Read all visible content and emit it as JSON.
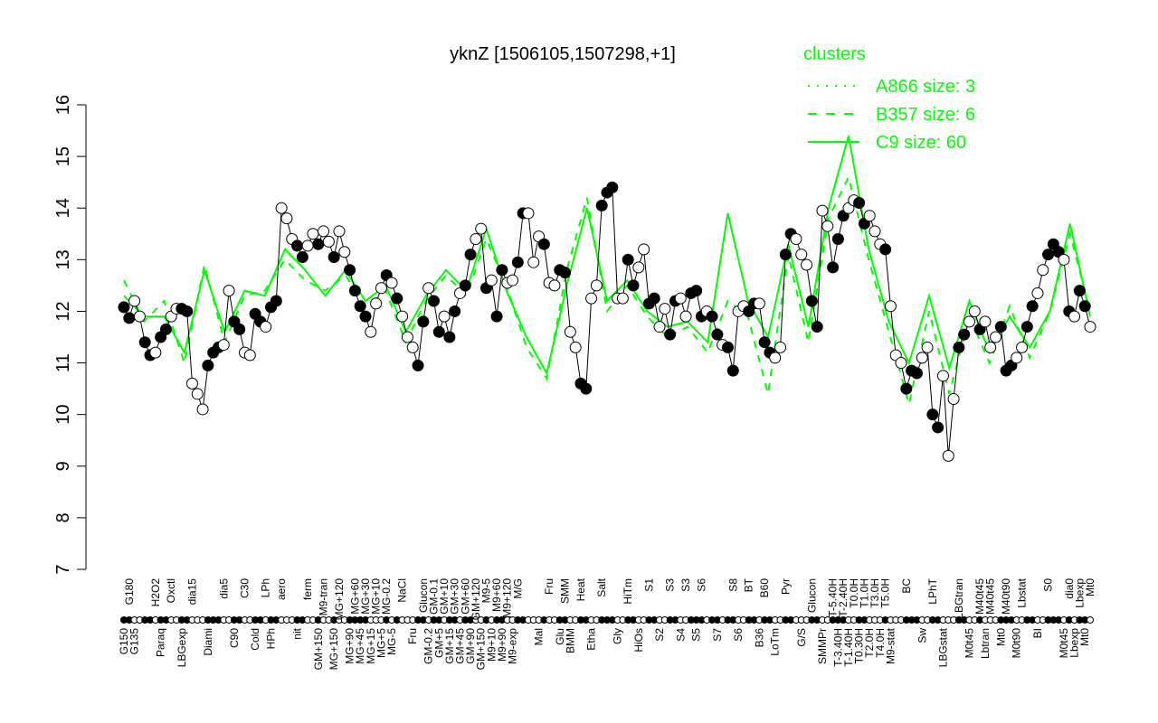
{
  "chart_data": {
    "type": "line",
    "title": "yknZ [1506105,1507298,+1]",
    "xlabel": "",
    "ylabel": "",
    "ylim": [
      7,
      16
    ],
    "yticks": [
      7,
      8,
      9,
      10,
      11,
      12,
      13,
      14,
      15,
      16
    ],
    "grid": false,
    "legend": {
      "title": "clusters",
      "placement": "top-right",
      "entries": [
        {
          "label": "A866 size: 3",
          "style": "dotted"
        },
        {
          "label": "B357 size: 6",
          "style": "dashed"
        },
        {
          "label": "C9 size: 60",
          "style": "solid"
        }
      ]
    },
    "colors": {
      "cluster": "#00ff00",
      "points": "#000000"
    },
    "points": [
      {
        "label": "G150",
        "value": 12.08,
        "filled": true
      },
      {
        "label": "G180",
        "value": 11.87,
        "filled": true
      },
      {
        "label": "G135",
        "value": 12.2,
        "filled": false
      },
      {
        "label": "",
        "value": 11.9,
        "filled": false
      },
      {
        "label": "",
        "value": 11.4,
        "filled": true
      },
      {
        "label": "",
        "value": 11.15,
        "filled": true
      },
      {
        "label": "H2O2",
        "value": 11.2,
        "filled": false
      },
      {
        "label": "Paraq",
        "value": 11.5,
        "filled": true
      },
      {
        "label": "",
        "value": 11.65,
        "filled": true
      },
      {
        "label": "Oxctl",
        "value": 11.9,
        "filled": false
      },
      {
        "label": "",
        "value": 12.05,
        "filled": false
      },
      {
        "label": "LBGexp",
        "value": 12.05,
        "filled": true
      },
      {
        "label": "",
        "value": 12.0,
        "filled": true
      },
      {
        "label": "dia15",
        "value": 10.6,
        "filled": false
      },
      {
        "label": "",
        "value": 10.4,
        "filled": false
      },
      {
        "label": "",
        "value": 10.1,
        "filled": false
      },
      {
        "label": "Diami",
        "value": 10.95,
        "filled": true
      },
      {
        "label": "",
        "value": 11.2,
        "filled": true
      },
      {
        "label": "",
        "value": 11.3,
        "filled": true
      },
      {
        "label": "dia5",
        "value": 11.35,
        "filled": false
      },
      {
        "label": "",
        "value": 12.4,
        "filled": false
      },
      {
        "label": "C90",
        "value": 11.8,
        "filled": true
      },
      {
        "label": "",
        "value": 11.65,
        "filled": true
      },
      {
        "label": "C30",
        "value": 11.2,
        "filled": false
      },
      {
        "label": "",
        "value": 11.15,
        "filled": false
      },
      {
        "label": "Cold",
        "value": 11.95,
        "filled": true
      },
      {
        "label": "",
        "value": 11.8,
        "filled": true
      },
      {
        "label": "LPh",
        "value": 11.7,
        "filled": false
      },
      {
        "label": "HPh",
        "value": 12.08,
        "filled": true
      },
      {
        "label": "",
        "value": 12.2,
        "filled": true
      },
      {
        "label": "aero",
        "value": 14.0,
        "filled": false
      },
      {
        "label": "",
        "value": 13.8,
        "filled": false
      },
      {
        "label": "",
        "value": 13.4,
        "filled": false
      },
      {
        "label": "nit",
        "value": 13.27,
        "filled": true
      },
      {
        "label": "",
        "value": 13.05,
        "filled": true
      },
      {
        "label": "ferm",
        "value": 13.27,
        "filled": false
      },
      {
        "label": "",
        "value": 13.5,
        "filled": false
      },
      {
        "label": "GM+150",
        "value": 13.3,
        "filled": true
      },
      {
        "label": "M9-tran",
        "value": 13.55,
        "filled": false
      },
      {
        "label": "",
        "value": 13.35,
        "filled": false
      },
      {
        "label": "MG+150",
        "value": 13.05,
        "filled": true
      },
      {
        "label": "MG+120",
        "value": 13.55,
        "filled": false
      },
      {
        "label": "",
        "value": 13.15,
        "filled": false
      },
      {
        "label": "MG+90",
        "value": 12.8,
        "filled": true
      },
      {
        "label": "MG+60",
        "value": 12.4,
        "filled": true
      },
      {
        "label": "MG+45",
        "value": 12.1,
        "filled": true
      },
      {
        "label": "MG+30",
        "value": 11.9,
        "filled": true
      },
      {
        "label": "MG+15",
        "value": 11.6,
        "filled": false
      },
      {
        "label": "MG+10",
        "value": 12.15,
        "filled": false
      },
      {
        "label": "MG+5",
        "value": 12.45,
        "filled": false
      },
      {
        "label": "MG-0.2",
        "value": 12.7,
        "filled": true
      },
      {
        "label": "MG-5",
        "value": 12.55,
        "filled": false
      },
      {
        "label": "",
        "value": 12.25,
        "filled": true
      },
      {
        "label": "NaCl",
        "value": 11.9,
        "filled": false
      },
      {
        "label": "",
        "value": 11.5,
        "filled": false
      },
      {
        "label": "Fru",
        "value": 11.3,
        "filled": false
      },
      {
        "label": "",
        "value": 10.95,
        "filled": true
      },
      {
        "label": "Glucon",
        "value": 11.8,
        "filled": true
      },
      {
        "label": "GM-0.2",
        "value": 12.45,
        "filled": false
      },
      {
        "label": "GM-0.1",
        "value": 12.2,
        "filled": true
      },
      {
        "label": "GM+5",
        "value": 11.6,
        "filled": true
      },
      {
        "label": "GM+10",
        "value": 11.9,
        "filled": false
      },
      {
        "label": "GM+15",
        "value": 11.5,
        "filled": true
      },
      {
        "label": "GM+30",
        "value": 12.0,
        "filled": true
      },
      {
        "label": "GM+45",
        "value": 12.35,
        "filled": false
      },
      {
        "label": "GM+60",
        "value": 12.5,
        "filled": true
      },
      {
        "label": "GM+90",
        "value": 13.1,
        "filled": true
      },
      {
        "label": "GM+120",
        "value": 13.4,
        "filled": false
      },
      {
        "label": "GM+150",
        "value": 13.6,
        "filled": false
      },
      {
        "label": "M9-5",
        "value": 12.45,
        "filled": true
      },
      {
        "label": "M9+10",
        "value": 12.6,
        "filled": false
      },
      {
        "label": "M9+60",
        "value": 11.9,
        "filled": true
      },
      {
        "label": "M9+90",
        "value": 12.8,
        "filled": true
      },
      {
        "label": "M9+120",
        "value": 12.55,
        "filled": false
      },
      {
        "label": "M9-exp",
        "value": 12.6,
        "filled": false
      },
      {
        "label": "M/G",
        "value": 12.95,
        "filled": true
      },
      {
        "label": "",
        "value": 13.9,
        "filled": true
      },
      {
        "label": "",
        "value": 13.9,
        "filled": false
      },
      {
        "label": "",
        "value": 12.95,
        "filled": false
      },
      {
        "label": "Mal",
        "value": 13.45,
        "filled": false
      },
      {
        "label": "",
        "value": 13.3,
        "filled": true
      },
      {
        "label": "Fru",
        "value": 12.55,
        "filled": false
      },
      {
        "label": "",
        "value": 12.5,
        "filled": false
      },
      {
        "label": "Glu",
        "value": 12.8,
        "filled": true
      },
      {
        "label": "SMM",
        "value": 12.75,
        "filled": true
      },
      {
        "label": "BMM",
        "value": 11.6,
        "filled": false
      },
      {
        "label": "",
        "value": 11.3,
        "filled": false
      },
      {
        "label": "Heat",
        "value": 10.6,
        "filled": true
      },
      {
        "label": "",
        "value": 10.5,
        "filled": true
      },
      {
        "label": "Etha",
        "value": 12.25,
        "filled": false
      },
      {
        "label": "",
        "value": 12.5,
        "filled": false
      },
      {
        "label": "Salt",
        "value": 14.05,
        "filled": true
      },
      {
        "label": "",
        "value": 14.3,
        "filled": true
      },
      {
        "label": "",
        "value": 14.4,
        "filled": true
      },
      {
        "label": "Gly",
        "value": 12.25,
        "filled": false
      },
      {
        "label": "",
        "value": 12.25,
        "filled": false
      },
      {
        "label": "HiTm",
        "value": 13.0,
        "filled": true
      },
      {
        "label": "",
        "value": 12.5,
        "filled": true
      },
      {
        "label": "HiOs",
        "value": 12.85,
        "filled": false
      },
      {
        "label": "",
        "value": 13.2,
        "filled": false
      },
      {
        "label": "S1",
        "value": 12.15,
        "filled": true
      },
      {
        "label": "",
        "value": 12.25,
        "filled": true
      },
      {
        "label": "S2",
        "value": 11.7,
        "filled": false
      },
      {
        "label": "",
        "value": 12.05,
        "filled": false
      },
      {
        "label": "S3",
        "value": 11.55,
        "filled": true
      },
      {
        "label": "",
        "value": 12.2,
        "filled": true
      },
      {
        "label": "S4",
        "value": 12.25,
        "filled": false
      },
      {
        "label": "S3",
        "value": 11.9,
        "filled": false
      },
      {
        "label": "",
        "value": 12.35,
        "filled": true
      },
      {
        "label": "S5",
        "value": 12.4,
        "filled": true
      },
      {
        "label": "S6",
        "value": 11.9,
        "filled": true
      },
      {
        "label": "",
        "value": 12.0,
        "filled": false
      },
      {
        "label": "",
        "value": 11.9,
        "filled": true
      },
      {
        "label": "S7",
        "value": 11.55,
        "filled": true
      },
      {
        "label": "",
        "value": 11.35,
        "filled": false
      },
      {
        "label": "",
        "value": 11.3,
        "filled": true
      },
      {
        "label": "S8",
        "value": 10.85,
        "filled": true
      },
      {
        "label": "S6",
        "value": 12.0,
        "filled": false
      },
      {
        "label": "",
        "value": 12.1,
        "filled": false
      },
      {
        "label": "BT",
        "value": 12.0,
        "filled": true
      },
      {
        "label": "",
        "value": 12.15,
        "filled": true
      },
      {
        "label": "B36",
        "value": 12.15,
        "filled": false
      },
      {
        "label": "B60",
        "value": 11.4,
        "filled": true
      },
      {
        "label": "",
        "value": 11.2,
        "filled": true
      },
      {
        "label": "LoTm",
        "value": 11.1,
        "filled": false
      },
      {
        "label": "",
        "value": 11.3,
        "filled": false
      },
      {
        "label": "Pyr",
        "value": 13.1,
        "filled": true
      },
      {
        "label": "",
        "value": 13.5,
        "filled": true
      },
      {
        "label": "",
        "value": 13.4,
        "filled": false
      },
      {
        "label": "G/S",
        "value": 13.1,
        "filled": false
      },
      {
        "label": "",
        "value": 12.9,
        "filled": false
      },
      {
        "label": "Glucon",
        "value": 12.2,
        "filled": true
      },
      {
        "label": "",
        "value": 11.7,
        "filled": true
      },
      {
        "label": "SMMPr",
        "value": 13.95,
        "filled": false
      },
      {
        "label": "",
        "value": 13.65,
        "filled": false
      },
      {
        "label": "T-5.40H",
        "value": 12.85,
        "filled": true
      },
      {
        "label": "T-3.40H",
        "value": 13.4,
        "filled": true
      },
      {
        "label": "T-2.40H",
        "value": 13.85,
        "filled": true
      },
      {
        "label": "T-1.40H",
        "value": 14.0,
        "filled": false
      },
      {
        "label": "T0.0H",
        "value": 14.15,
        "filled": false
      },
      {
        "label": "T0.30H",
        "value": 14.1,
        "filled": true
      },
      {
        "label": "T1.0H",
        "value": 13.7,
        "filled": true
      },
      {
        "label": "T2.0H",
        "value": 13.85,
        "filled": false
      },
      {
        "label": "T3.0H",
        "value": 13.55,
        "filled": false
      },
      {
        "label": "T4.0H",
        "value": 13.3,
        "filled": false
      },
      {
        "label": "T5.0H",
        "value": 13.2,
        "filled": true
      },
      {
        "label": "M9-stat",
        "value": 12.1,
        "filled": false
      },
      {
        "label": "",
        "value": 11.15,
        "filled": false
      },
      {
        "label": "",
        "value": 11.0,
        "filled": false
      },
      {
        "label": "BC",
        "value": 10.5,
        "filled": true
      },
      {
        "label": "",
        "value": 10.85,
        "filled": true
      },
      {
        "label": "",
        "value": 10.8,
        "filled": true
      },
      {
        "label": "Sw",
        "value": 11.1,
        "filled": false
      },
      {
        "label": "",
        "value": 11.3,
        "filled": false
      },
      {
        "label": "LPhT",
        "value": 10.0,
        "filled": true
      },
      {
        "label": "",
        "value": 9.75,
        "filled": true
      },
      {
        "label": "LBGstat",
        "value": 10.75,
        "filled": false
      },
      {
        "label": "",
        "value": 9.2,
        "filled": false
      },
      {
        "label": "",
        "value": 10.3,
        "filled": false
      },
      {
        "label": "LBGtran",
        "value": 11.3,
        "filled": true
      },
      {
        "label": "",
        "value": 11.55,
        "filled": true
      },
      {
        "label": "M0t45",
        "value": 11.8,
        "filled": false
      },
      {
        "label": "",
        "value": 12.0,
        "filled": false
      },
      {
        "label": "M40t45",
        "value": 11.65,
        "filled": true
      },
      {
        "label": "Lbtran",
        "value": 11.8,
        "filled": false
      },
      {
        "label": "M40t45",
        "value": 11.3,
        "filled": false
      },
      {
        "label": "",
        "value": 11.5,
        "filled": false
      },
      {
        "label": "Mt0",
        "value": 11.7,
        "filled": true
      },
      {
        "label": "M40t90",
        "value": 10.85,
        "filled": true
      },
      {
        "label": "",
        "value": 10.95,
        "filled": true
      },
      {
        "label": "M0t90",
        "value": 11.1,
        "filled": false
      },
      {
        "label": "Lbstat",
        "value": 11.3,
        "filled": false
      },
      {
        "label": "",
        "value": 11.7,
        "filled": true
      },
      {
        "label": "",
        "value": 12.1,
        "filled": true
      },
      {
        "label": "BI",
        "value": 12.35,
        "filled": false
      },
      {
        "label": "",
        "value": 12.8,
        "filled": false
      },
      {
        "label": "S0",
        "value": 13.1,
        "filled": true
      },
      {
        "label": "",
        "value": 13.3,
        "filled": true
      },
      {
        "label": "",
        "value": 13.15,
        "filled": true
      },
      {
        "label": "M0t45",
        "value": 13.0,
        "filled": false
      },
      {
        "label": "dia0",
        "value": 12.0,
        "filled": true
      },
      {
        "label": "Lbexp",
        "value": 11.9,
        "filled": false
      },
      {
        "label": "Lbexp",
        "value": 12.4,
        "filled": true
      },
      {
        "label": "Mt0",
        "value": 12.1,
        "filled": true
      },
      {
        "label": "Mt0",
        "value": 11.7,
        "filled": false
      }
    ],
    "series": [
      {
        "name": "C9 size: 60",
        "style": "solid",
        "values": [
          12.3,
          11.9,
          11.9,
          11.2,
          12.8,
          11.6,
          12.4,
          12.3,
          13.2,
          12.8,
          12.3,
          12.8,
          12.2,
          12.5,
          11.6,
          12.3,
          12.8,
          12.4,
          13.6,
          12.4,
          11.5,
          10.8,
          12.5,
          14.0,
          12.2,
          12.6,
          12.0,
          11.7,
          11.8,
          11.4,
          13.9,
          12.2,
          11.5,
          13.3,
          11.7,
          14.0,
          15.4,
          13.2,
          11.8,
          11.0,
          12.3,
          10.9,
          12.2,
          11.2,
          11.9,
          11.3,
          12.0,
          13.7,
          11.9
        ]
      },
      {
        "name": "B357 size: 6",
        "style": "dashed",
        "values": [
          12.6,
          11.8,
          12.2,
          11.0,
          12.9,
          11.4,
          12.3,
          12.4,
          13.0,
          12.6,
          12.4,
          12.7,
          12.1,
          12.4,
          11.4,
          12.2,
          12.7,
          12.3,
          13.4,
          12.5,
          11.3,
          10.7,
          12.8,
          14.2,
          12.0,
          12.5,
          11.9,
          11.5,
          11.7,
          11.2,
          12.2,
          11.9,
          10.4,
          13.1,
          11.4,
          13.8,
          14.6,
          13.0,
          11.6,
          10.2,
          12.0,
          10.4,
          11.9,
          11.0,
          12.1,
          11.1,
          12.0,
          13.5,
          12.0
        ]
      }
    ]
  }
}
